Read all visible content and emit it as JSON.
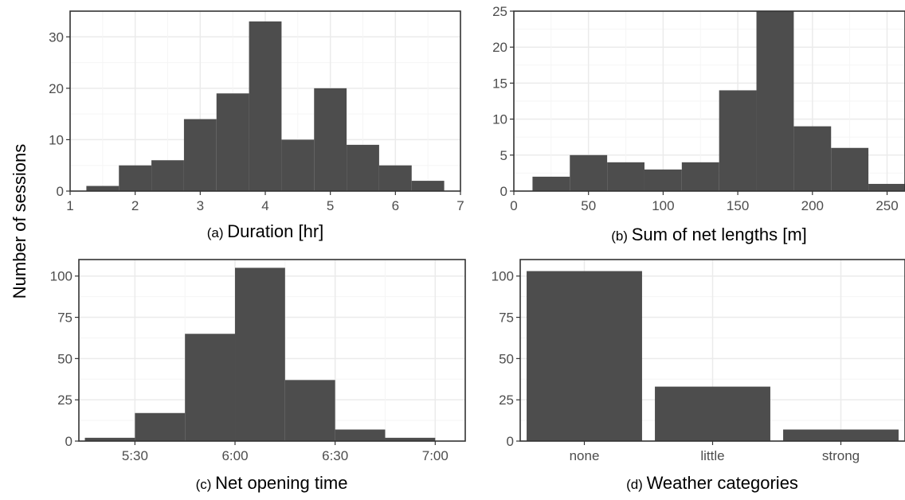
{
  "figure": {
    "ylabel": "Number of sessions",
    "bar_color": "#4d4d4d",
    "grid_major_color": "#ebebeb"
  },
  "chart_data": [
    {
      "type": "bar",
      "subplot": "a",
      "panel_prefix": "(a)",
      "xlabel": "Duration [hr]",
      "xlim": [
        1,
        7
      ],
      "ylim": [
        0,
        35
      ],
      "xticks": [
        1,
        2,
        3,
        4,
        5,
        6,
        7
      ],
      "xtick_labels": [
        "1",
        "2",
        "3",
        "4",
        "5",
        "6",
        "7"
      ],
      "yticks": [
        0,
        10,
        20,
        30
      ],
      "ytick_labels": [
        "0",
        "10",
        "20",
        "30"
      ],
      "bin_edges": [
        1.25,
        1.75,
        2.25,
        2.75,
        3.25,
        3.75,
        4.25,
        4.75,
        5.25,
        5.75,
        6.25,
        6.75
      ],
      "values": [
        1,
        5,
        6,
        14,
        19,
        33,
        10,
        20,
        9,
        5,
        2
      ]
    },
    {
      "type": "bar",
      "subplot": "b",
      "panel_prefix": "(b)",
      "xlabel": "Sum of net lengths [m]",
      "xlim": [
        0,
        262
      ],
      "ylim": [
        0,
        25
      ],
      "xticks": [
        0,
        50,
        100,
        150,
        200,
        250
      ],
      "xtick_labels": [
        "0",
        "50",
        "100",
        "150",
        "200",
        "250"
      ],
      "yticks": [
        0,
        5,
        10,
        15,
        20,
        25
      ],
      "ytick_labels": [
        "0",
        "5",
        "10",
        "15",
        "20",
        "25"
      ],
      "bin_edges": [
        12.5,
        37.5,
        62.5,
        87.5,
        112.5,
        137.5,
        162.5,
        187.5,
        212.5,
        237.5,
        262.5
      ],
      "values": [
        2,
        5,
        4,
        3,
        4,
        14,
        25,
        9,
        6,
        1
      ]
    },
    {
      "type": "bar",
      "subplot": "c",
      "panel_prefix": "(c)",
      "xlabel": "Net opening time",
      "xlim": [
        5.22,
        7.15
      ],
      "ylim": [
        0,
        110
      ],
      "xticks": [
        5.5,
        6.0,
        6.5,
        7.0
      ],
      "xtick_labels": [
        "5:30",
        "6:00",
        "6:30",
        "7:00"
      ],
      "yticks": [
        0,
        25,
        50,
        75,
        100
      ],
      "ytick_labels": [
        "0",
        "25",
        "50",
        "75",
        "100"
      ],
      "bin_edges": [
        5.25,
        5.5,
        5.75,
        6.0,
        6.25,
        6.5,
        6.75,
        7.0
      ],
      "values": [
        2,
        17,
        65,
        105,
        37,
        7,
        2
      ]
    },
    {
      "type": "bar",
      "subplot": "d",
      "panel_prefix": "(d)",
      "xlabel": "Weather categories",
      "categories": [
        "none",
        "little",
        "strong"
      ],
      "values": [
        103,
        33,
        7
      ],
      "ylim": [
        0,
        110
      ],
      "yticks": [
        0,
        25,
        50,
        75,
        100
      ],
      "ytick_labels": [
        "0",
        "25",
        "50",
        "75",
        "100"
      ]
    }
  ]
}
